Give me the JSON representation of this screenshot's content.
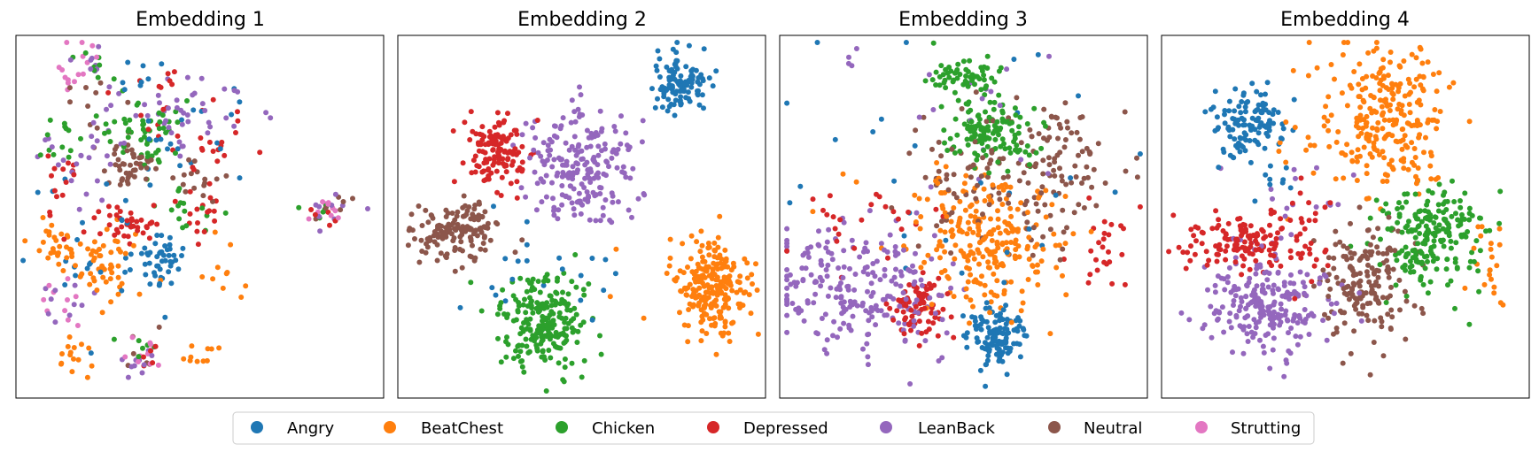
{
  "chart_data": {
    "type": "scatter",
    "legend": {
      "position": "bottom-center",
      "entries": [
        {
          "label": "Angry",
          "color": "#1f77b4"
        },
        {
          "label": "BeatChest",
          "color": "#ff7f0e"
        },
        {
          "label": "Chicken",
          "color": "#2ca02c"
        },
        {
          "label": "Depressed",
          "color": "#d62728"
        },
        {
          "label": "LeanBack",
          "color": "#9467bd"
        },
        {
          "label": "Neutral",
          "color": "#8c564b"
        },
        {
          "label": "Strutting",
          "color": "#e377c2"
        }
      ]
    },
    "panels": [
      {
        "title": "Embedding 1",
        "xlim": [
          0,
          100
        ],
        "ylim": [
          0,
          100
        ],
        "ticks": false,
        "series": [
          {
            "name": "Angry",
            "clusters": [
              {
                "cx": 38,
                "cy": 63,
                "sx": 4,
                "sy": 4,
                "n": 45
              },
              {
                "cx": 20,
                "cy": 58,
                "sx": 10,
                "sy": 12,
                "n": 25
              },
              {
                "cx": 48,
                "cy": 28,
                "sx": 10,
                "sy": 10,
                "n": 20
              },
              {
                "cx": 34,
                "cy": 12,
                "sx": 5,
                "sy": 4,
                "n": 8
              }
            ]
          },
          {
            "name": "BeatChest",
            "clusters": [
              {
                "cx": 23,
                "cy": 64,
                "sx": 5,
                "sy": 5,
                "n": 55
              },
              {
                "cx": 10,
                "cy": 58,
                "sx": 3,
                "sy": 3,
                "n": 25
              },
              {
                "cx": 15,
                "cy": 90,
                "sx": 3,
                "sy": 4,
                "n": 15
              },
              {
                "cx": 50,
                "cy": 90,
                "sx": 3,
                "sy": 3,
                "n": 10
              },
              {
                "cx": 58,
                "cy": 65,
                "sx": 5,
                "sy": 5,
                "n": 10
              }
            ]
          },
          {
            "name": "Chicken",
            "clusters": [
              {
                "cx": 36,
                "cy": 26,
                "sx": 5,
                "sy": 5,
                "n": 50
              },
              {
                "cx": 13,
                "cy": 28,
                "sx": 5,
                "sy": 4,
                "n": 15
              },
              {
                "cx": 47,
                "cy": 48,
                "sx": 4,
                "sy": 3,
                "n": 15
              },
              {
                "cx": 20,
                "cy": 8,
                "sx": 3,
                "sy": 3,
                "n": 8
              },
              {
                "cx": 85,
                "cy": 48,
                "sx": 3,
                "sy": 2,
                "n": 6
              },
              {
                "cx": 34,
                "cy": 87,
                "sx": 3,
                "sy": 3,
                "n": 6
              }
            ]
          },
          {
            "name": "Depressed",
            "clusters": [
              {
                "cx": 30,
                "cy": 52,
                "sx": 5,
                "sy": 3,
                "n": 40
              },
              {
                "cx": 48,
                "cy": 30,
                "sx": 10,
                "sy": 6,
                "n": 30
              },
              {
                "cx": 12,
                "cy": 45,
                "sx": 3,
                "sy": 10,
                "n": 15
              },
              {
                "cx": 52,
                "cy": 50,
                "sx": 3,
                "sy": 4,
                "n": 15
              },
              {
                "cx": 40,
                "cy": 12,
                "sx": 6,
                "sy": 2,
                "n": 8
              },
              {
                "cx": 86,
                "cy": 48,
                "sx": 3,
                "sy": 2,
                "n": 5
              },
              {
                "cx": 34,
                "cy": 88,
                "sx": 3,
                "sy": 3,
                "n": 5
              }
            ]
          },
          {
            "name": "LeanBack",
            "clusters": [
              {
                "cx": 45,
                "cy": 22,
                "sx": 14,
                "sy": 6,
                "n": 45
              },
              {
                "cx": 24,
                "cy": 30,
                "sx": 4,
                "sy": 10,
                "n": 15
              },
              {
                "cx": 12,
                "cy": 35,
                "sx": 5,
                "sy": 5,
                "n": 10
              },
              {
                "cx": 12,
                "cy": 75,
                "sx": 3,
                "sy": 4,
                "n": 10
              },
              {
                "cx": 86,
                "cy": 48,
                "sx": 4,
                "sy": 2,
                "n": 10
              },
              {
                "cx": 33,
                "cy": 90,
                "sx": 3,
                "sy": 3,
                "n": 10
              },
              {
                "cx": 20,
                "cy": 6,
                "sx": 2,
                "sy": 3,
                "n": 8
              }
            ]
          },
          {
            "name": "Neutral",
            "clusters": [
              {
                "cx": 31,
                "cy": 36,
                "sx": 4,
                "sy": 3,
                "n": 45
              },
              {
                "cx": 50,
                "cy": 40,
                "sx": 4,
                "sy": 3,
                "n": 15
              },
              {
                "cx": 20,
                "cy": 20,
                "sx": 6,
                "sy": 6,
                "n": 10
              },
              {
                "cx": 86,
                "cy": 48,
                "sx": 3,
                "sy": 2,
                "n": 6
              },
              {
                "cx": 34,
                "cy": 87,
                "sx": 3,
                "sy": 3,
                "n": 6
              }
            ]
          },
          {
            "name": "Strutting",
            "clusters": [
              {
                "cx": 15,
                "cy": 8,
                "sx": 3,
                "sy": 4,
                "n": 15
              },
              {
                "cx": 12,
                "cy": 73,
                "sx": 3,
                "sy": 3,
                "n": 10
              },
              {
                "cx": 86,
                "cy": 47,
                "sx": 4,
                "sy": 2,
                "n": 10
              },
              {
                "cx": 34,
                "cy": 88,
                "sx": 3,
                "sy": 3,
                "n": 10
              }
            ]
          }
        ]
      },
      {
        "title": "Embedding 2",
        "xlim": [
          0,
          100
        ],
        "ylim": [
          0,
          100
        ],
        "ticks": false,
        "series": [
          {
            "name": "Angry",
            "clusters": [
              {
                "cx": 77,
                "cy": 12,
                "sx": 4,
                "sy": 4,
                "n": 110
              },
              {
                "cx": 33,
                "cy": 60,
                "sx": 8,
                "sy": 9,
                "n": 15
              },
              {
                "cx": 55,
                "cy": 70,
                "sx": 10,
                "sy": 10,
                "n": 6
              }
            ]
          },
          {
            "name": "BeatChest",
            "clusters": [
              {
                "cx": 86,
                "cy": 70,
                "sx": 5,
                "sy": 7,
                "n": 230
              },
              {
                "cx": 60,
                "cy": 73,
                "sx": 5,
                "sy": 5,
                "n": 3
              }
            ]
          },
          {
            "name": "Chicken",
            "clusters": [
              {
                "cx": 40,
                "cy": 80,
                "sx": 6,
                "sy": 7,
                "n": 230
              }
            ]
          },
          {
            "name": "Depressed",
            "clusters": [
              {
                "cx": 26,
                "cy": 31,
                "sx": 5,
                "sy": 5,
                "n": 130
              }
            ]
          },
          {
            "name": "LeanBack",
            "clusters": [
              {
                "cx": 50,
                "cy": 36,
                "sx": 7,
                "sy": 8,
                "n": 210
              }
            ]
          },
          {
            "name": "Neutral",
            "clusters": [
              {
                "cx": 16,
                "cy": 54,
                "sx": 6,
                "sy": 4,
                "n": 150
              }
            ]
          },
          {
            "name": "Strutting",
            "clusters": []
          }
        ]
      },
      {
        "title": "Embedding 3",
        "xlim": [
          0,
          100
        ],
        "ylim": [
          0,
          100
        ],
        "ticks": false,
        "series": [
          {
            "name": "Angry",
            "clusters": [
              {
                "cx": 60,
                "cy": 83,
                "sx": 4,
                "sy": 4,
                "n": 120
              },
              {
                "cx": 55,
                "cy": 45,
                "sx": 25,
                "sy": 25,
                "n": 30
              }
            ]
          },
          {
            "name": "BeatChest",
            "clusters": [
              {
                "cx": 57,
                "cy": 58,
                "sx": 9,
                "sy": 9,
                "n": 230
              },
              {
                "cx": 40,
                "cy": 45,
                "sx": 10,
                "sy": 6,
                "n": 20
              }
            ]
          },
          {
            "name": "Chicken",
            "clusters": [
              {
                "cx": 57,
                "cy": 27,
                "sx": 6,
                "sy": 5,
                "n": 130
              },
              {
                "cx": 50,
                "cy": 10,
                "sx": 5,
                "sy": 3,
                "n": 60
              }
            ]
          },
          {
            "name": "Depressed",
            "clusters": [
              {
                "cx": 38,
                "cy": 76,
                "sx": 4,
                "sy": 4,
                "n": 80
              },
              {
                "cx": 89,
                "cy": 58,
                "sx": 4,
                "sy": 8,
                "n": 25
              },
              {
                "cx": 20,
                "cy": 52,
                "sx": 12,
                "sy": 6,
                "n": 25
              }
            ]
          },
          {
            "name": "LeanBack",
            "clusters": [
              {
                "cx": 20,
                "cy": 70,
                "sx": 12,
                "sy": 9,
                "n": 230
              },
              {
                "cx": 40,
                "cy": 20,
                "sx": 20,
                "sy": 12,
                "n": 20
              }
            ]
          },
          {
            "name": "Neutral",
            "clusters": [
              {
                "cx": 65,
                "cy": 40,
                "sx": 14,
                "sy": 9,
                "n": 140
              },
              {
                "cx": 78,
                "cy": 28,
                "sx": 5,
                "sy": 5,
                "n": 30
              }
            ]
          },
          {
            "name": "Strutting",
            "clusters": []
          }
        ]
      },
      {
        "title": "Embedding 4",
        "xlim": [
          0,
          100
        ],
        "ylim": [
          0,
          100
        ],
        "ticks": false,
        "series": [
          {
            "name": "Angry",
            "clusters": [
              {
                "cx": 23,
                "cy": 24,
                "sx": 5,
                "sy": 5,
                "n": 120
              },
              {
                "cx": 28,
                "cy": 38,
                "sx": 5,
                "sy": 5,
                "n": 8
              }
            ]
          },
          {
            "name": "BeatChest",
            "clusters": [
              {
                "cx": 62,
                "cy": 22,
                "sx": 8,
                "sy": 10,
                "n": 250
              },
              {
                "cx": 90,
                "cy": 60,
                "sx": 4,
                "sy": 8,
                "n": 20
              },
              {
                "cx": 40,
                "cy": 30,
                "sx": 6,
                "sy": 10,
                "n": 15
              }
            ]
          },
          {
            "name": "Chicken",
            "clusters": [
              {
                "cx": 74,
                "cy": 55,
                "sx": 7,
                "sy": 7,
                "n": 210
              }
            ]
          },
          {
            "name": "Depressed",
            "clusters": [
              {
                "cx": 22,
                "cy": 57,
                "sx": 8,
                "sy": 4,
                "n": 130
              },
              {
                "cx": 38,
                "cy": 55,
                "sx": 4,
                "sy": 6,
                "n": 30
              }
            ]
          },
          {
            "name": "LeanBack",
            "clusters": [
              {
                "cx": 28,
                "cy": 75,
                "sx": 8,
                "sy": 7,
                "n": 230
              },
              {
                "cx": 40,
                "cy": 45,
                "sx": 10,
                "sy": 8,
                "n": 15
              }
            ]
          },
          {
            "name": "Neutral",
            "clusters": [
              {
                "cx": 55,
                "cy": 68,
                "sx": 7,
                "sy": 8,
                "n": 170
              }
            ]
          },
          {
            "name": "Strutting",
            "clusters": []
          }
        ]
      }
    ]
  }
}
